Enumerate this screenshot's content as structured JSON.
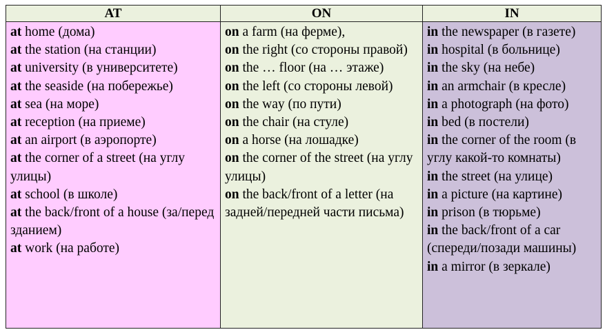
{
  "headers": [
    "AT",
    "ON",
    "IN"
  ],
  "colors": {
    "header": "#ebf1de",
    "at": "#ffccff",
    "on": "#ebf1de",
    "in": "#ccc0da"
  },
  "columns": {
    "at": [
      {
        "prep": "at",
        "text": " home (дома)"
      },
      {
        "prep": "at",
        "text": " the station (на станции)"
      },
      {
        "prep": "at",
        "text": " university (в университете)"
      },
      {
        "prep": "at",
        "text": " the seaside (на побережье)"
      },
      {
        "prep": "at",
        "text": " sea (на море)"
      },
      {
        "prep": "at",
        "text": " reception (на приеме)"
      },
      {
        "prep": "at",
        "text": " an airport (в аэропорте)"
      },
      {
        "prep": "at",
        "text": " the corner of a street (на углу улицы)"
      },
      {
        "prep": "at",
        "text": " school (в школе)"
      },
      {
        "prep": "at",
        "text": " the back/front of a house (за/перед зданием)"
      },
      {
        "prep": "at",
        "text": " work (на работе)"
      }
    ],
    "on": [
      {
        "prep": "on",
        "text": " a farm (на ферме),"
      },
      {
        "prep": "on",
        "text": " the right (со стороны правой)"
      },
      {
        "prep": "on",
        "text": " the … floor (на … этаже)"
      },
      {
        "prep": "on",
        "text": " the left (со стороны левой)"
      },
      {
        "prep": "on",
        "text": " the way (по пути)"
      },
      {
        "prep": "on",
        "text": " the chair (на стуле)"
      },
      {
        "prep": "on",
        "text": " a horse (на лошадке)"
      },
      {
        "prep": "on",
        "text": " the corner of the street (на углу улицы)"
      },
      {
        "prep": "on",
        "text": " the back/front of a letter (на задней/передней части письма)"
      }
    ],
    "in": [
      {
        "prep": "in",
        "text": " the newspaper (в газете)"
      },
      {
        "prep": "in",
        "text": " hospital (в больнице)"
      },
      {
        "prep": "in",
        "text": " the sky (на небе)"
      },
      {
        "prep": "in",
        "text": " an armchair (в кресле)"
      },
      {
        "prep": "in",
        "text": " a photograph (на фото)"
      },
      {
        "prep": "in",
        "text": " bed (в постели)"
      },
      {
        "prep": "in",
        "text": " the corner of the room (в углу какой-то комнаты)"
      },
      {
        "prep": "in",
        "text": " the street (на улице)"
      },
      {
        "prep": "in",
        "text": " a picture (на картине)"
      },
      {
        "prep": "in",
        "text": " prison (в тюрьме)"
      },
      {
        "prep": "in",
        "text": " the back/front of a car (спереди/позади машины)"
      },
      {
        "prep": "in",
        "text": " a mirror (в зеркале)"
      }
    ]
  }
}
